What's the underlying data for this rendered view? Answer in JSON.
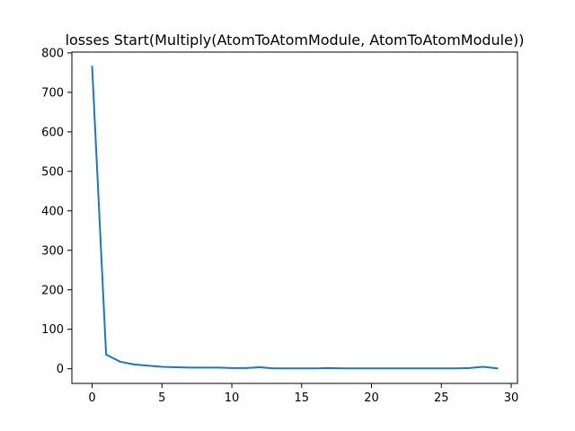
{
  "chart_data": {
    "type": "line",
    "title": "losses Start(Multiply(AtomToAtomModule, AtomToAtomModule))",
    "xlabel": "",
    "ylabel": "",
    "xlim": [
      -1.45,
      30.45
    ],
    "ylim": [
      -37,
      802
    ],
    "xticks": [
      0,
      5,
      10,
      15,
      20,
      25,
      30
    ],
    "yticks": [
      0,
      100,
      200,
      300,
      400,
      500,
      600,
      700,
      800
    ],
    "grid": false,
    "series": [
      {
        "color": "#1f77b4",
        "x": [
          0,
          1,
          2,
          3,
          4,
          5,
          6,
          7,
          8,
          9,
          10,
          11,
          12,
          13,
          14,
          15,
          16,
          17,
          18,
          19,
          20,
          21,
          22,
          23,
          24,
          25,
          26,
          27,
          28,
          29
        ],
        "values": [
          765,
          36,
          18,
          11,
          8,
          5,
          4,
          3,
          3,
          3,
          2,
          2,
          4,
          1,
          1,
          1,
          1,
          2,
          1,
          1,
          1,
          1,
          1,
          1,
          1,
          1,
          1,
          2,
          5,
          1
        ]
      }
    ]
  }
}
